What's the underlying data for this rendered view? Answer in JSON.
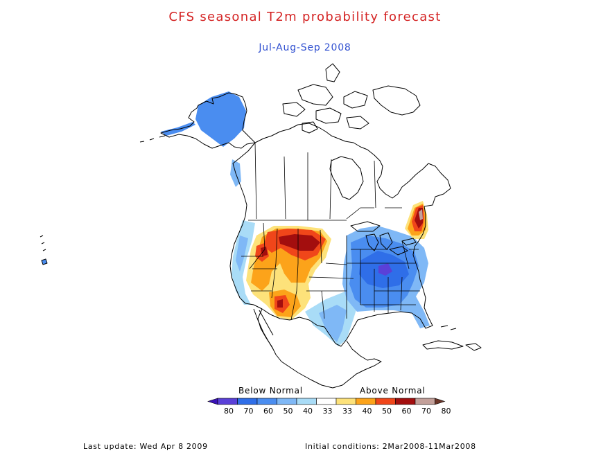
{
  "header": {
    "title": "CFS seasonal T2m probability forecast",
    "period": "Jul-Aug-Sep 2008"
  },
  "legend": {
    "below_label": "Below Normal",
    "above_label": "Above Normal",
    "bins": [
      {
        "label": "80",
        "color": "#3a12b8"
      },
      {
        "label": "70",
        "color": "#5a40d8"
      },
      {
        "label": "60",
        "color": "#2f6ee8"
      },
      {
        "label": "50",
        "color": "#4a8df0"
      },
      {
        "label": "40",
        "color": "#7fb8f6"
      },
      {
        "label": "33",
        "color": "#a9dcf7"
      },
      {
        "label": "33",
        "color": "#ffffff"
      },
      {
        "label": "40",
        "color": "#fde27a"
      },
      {
        "label": "50",
        "color": "#fca31a"
      },
      {
        "label": "60",
        "color": "#f0461a"
      },
      {
        "label": "70",
        "color": "#a30e0e"
      },
      {
        "label": "80",
        "color": "#c3a09a"
      },
      {
        "label": "",
        "color": "#6b3528"
      }
    ]
  },
  "footer": {
    "last_update": "Last update: Wed Apr 8 2009",
    "initial_conditions": "Initial conditions: 2Mar2008-11Mar2008"
  }
}
